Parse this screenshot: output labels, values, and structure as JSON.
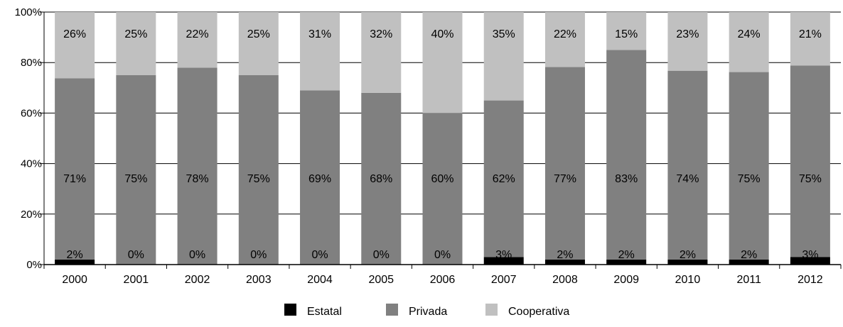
{
  "chart_data": {
    "type": "bar",
    "stacked": true,
    "percent_stacked": true,
    "title": "",
    "xlabel": "",
    "ylabel": "",
    "ylim": [
      0,
      100
    ],
    "y_ticks": [
      "0%",
      "20%",
      "40%",
      "60%",
      "80%",
      "100%"
    ],
    "grid": true,
    "legend_position": "bottom",
    "categories": [
      "2000",
      "2001",
      "2002",
      "2003",
      "2004",
      "2005",
      "2006",
      "2007",
      "2008",
      "2009",
      "2010",
      "2011",
      "2012"
    ],
    "series": [
      {
        "name": "Estatal",
        "color": "#000000",
        "values": [
          2,
          0,
          0,
          0,
          0,
          0,
          0,
          3,
          2,
          2,
          2,
          2,
          3
        ],
        "labels": [
          "2%",
          "0%",
          "0%",
          "0%",
          "0%",
          "0%",
          "0%",
          "3%",
          "2%",
          "2%",
          "2%",
          "2%",
          "3%"
        ]
      },
      {
        "name": "Privada",
        "color": "#808080",
        "values": [
          71,
          75,
          78,
          75,
          69,
          68,
          60,
          62,
          77,
          83,
          74,
          75,
          75
        ],
        "labels": [
          "71%",
          "75%",
          "78%",
          "75%",
          "69%",
          "68%",
          "60%",
          "62%",
          "77%",
          "83%",
          "74%",
          "75%",
          "75%"
        ]
      },
      {
        "name": "Cooperativa",
        "color": "#c0c0c0",
        "values": [
          26,
          25,
          22,
          25,
          31,
          32,
          40,
          35,
          22,
          15,
          23,
          24,
          21
        ],
        "labels": [
          "26%",
          "25%",
          "22%",
          "25%",
          "31%",
          "32%",
          "40%",
          "35%",
          "22%",
          "15%",
          "23%",
          "24%",
          "21%"
        ]
      }
    ]
  }
}
